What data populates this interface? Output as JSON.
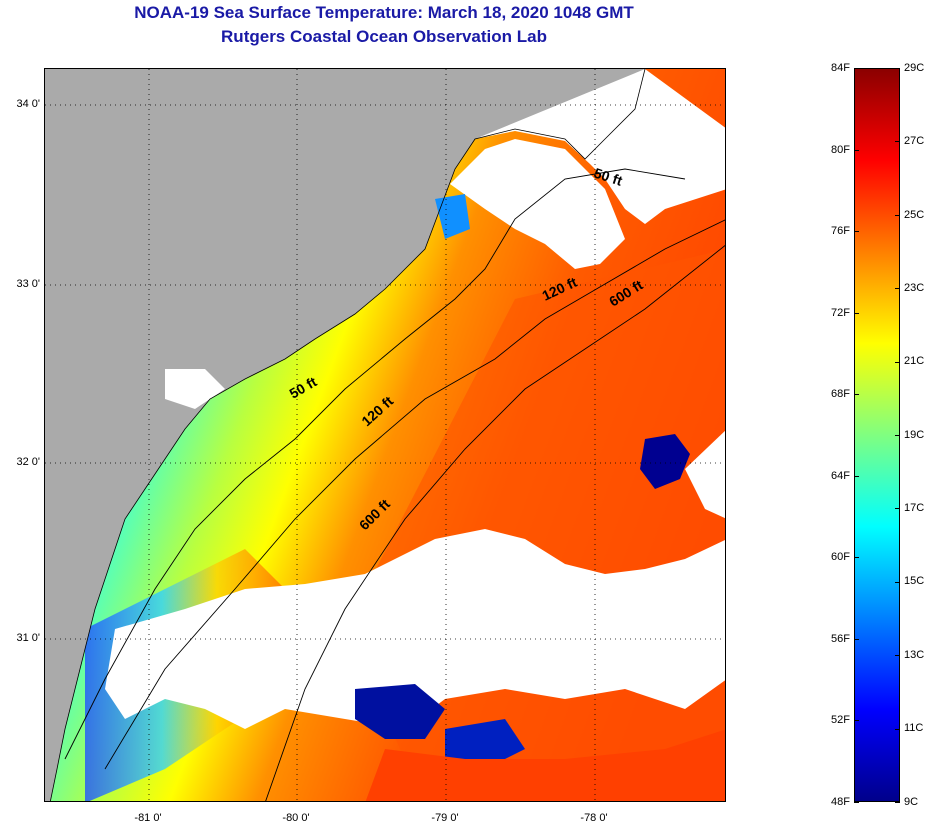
{
  "title": {
    "line1": "NOAA-19 Sea Surface Temperature:  March 18, 2020 1048 GMT",
    "line2": "Rutgers Coastal Ocean Observation Lab"
  },
  "map": {
    "latitude_labels": [
      "34 0'",
      "33 0'",
      "32 0'",
      "31 0'"
    ],
    "longitude_labels": [
      "-81 0'",
      "-80 0'",
      "-79 0'",
      "-78 0'"
    ],
    "latitude_values": [
      34,
      33,
      32,
      31
    ],
    "longitude_values": [
      -81,
      -80,
      -79,
      -78
    ],
    "lat_range": [
      30.0,
      34.2
    ],
    "lon_range": [
      -81.65,
      -77.0
    ],
    "contour_labels": {
      "c50_north": "50 ft",
      "c120_north": "120 ft",
      "c600_north": "600 ft",
      "c50_mid": "50 ft",
      "c120_mid": "120 ft",
      "c600_south": "600 ft"
    },
    "colors": {
      "land": "#aaaaaa",
      "cloud": "#ffffff",
      "coastline": "#000000"
    }
  },
  "colorbar": {
    "fahrenheit_labels": [
      "84F",
      "80F",
      "76F",
      "72F",
      "68F",
      "64F",
      "60F",
      "56F",
      "52F",
      "48F"
    ],
    "celsius_labels": [
      "29C",
      "27C",
      "25C",
      "23C",
      "21C",
      "19C",
      "17C",
      "15C",
      "13C",
      "11C",
      "9C"
    ],
    "min_f": 48,
    "max_f": 84,
    "min_c": 9,
    "max_c": 29,
    "colors": [
      "#00008b",
      "#0000ff",
      "#0080ff",
      "#00ffff",
      "#80ff80",
      "#ffff00",
      "#ff8000",
      "#ff0000",
      "#8b0000"
    ]
  }
}
